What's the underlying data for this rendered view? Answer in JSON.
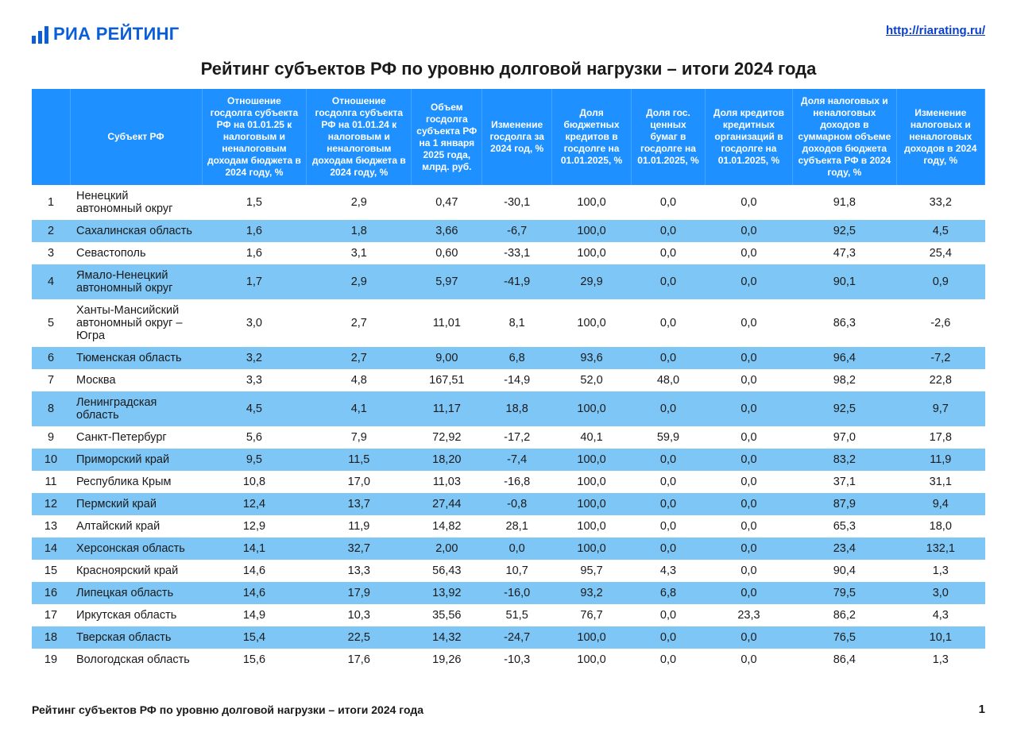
{
  "brand": {
    "ria": "РИА",
    "rating": "РЕЙТИНГ",
    "color": "#0b5ed7"
  },
  "url": "http://riarating.ru/",
  "title": "Рейтинг субъектов РФ по уровню долговой нагрузки – итоги 2024 года",
  "footer_text": "Рейтинг субъектов РФ по уровню долговой нагрузки – итоги 2024 года",
  "page_number": "1",
  "table": {
    "header_bg": "#1e90ff",
    "row_alt_bg": "#7ec6f5",
    "columns": [
      "",
      "Субъект РФ",
      "Отношение госдолга субъекта РФ на 01.01.25 к налоговым и неналоговым доходам бюджета в 2024 году, %",
      "Отношение госдолга субъекта РФ на 01.01.24 к налоговым и неналоговым доходам бюджета в 2024 году, %",
      "Объем госдолга субъекта РФ на 1 января 2025 года, млрд. руб.",
      "Изменение госдолга за 2024 год, %",
      "Доля бюджетных кредитов в госдолге на 01.01.2025, %",
      "Доля гос. ценных бумаг в госдолге на 01.01.2025, %",
      "Доля кредитов кредитных организаций в госдолге на 01.01.2025, %",
      "Доля налоговых и неналоговых доходов в суммарном объеме доходов бюджета субъекта РФ в 2024 году, %",
      "Изменение налоговых и неналоговых доходов в 2024 году, %"
    ],
    "rows": [
      [
        "1",
        "Ненецкий автономный округ",
        "1,5",
        "2,9",
        "0,47",
        "-30,1",
        "100,0",
        "0,0",
        "0,0",
        "91,8",
        "33,2"
      ],
      [
        "2",
        "Сахалинская область",
        "1,6",
        "1,8",
        "3,66",
        "-6,7",
        "100,0",
        "0,0",
        "0,0",
        "92,5",
        "4,5"
      ],
      [
        "3",
        "Севастополь",
        "1,6",
        "3,1",
        "0,60",
        "-33,1",
        "100,0",
        "0,0",
        "0,0",
        "47,3",
        "25,4"
      ],
      [
        "4",
        "Ямало-Ненецкий автономный округ",
        "1,7",
        "2,9",
        "5,97",
        "-41,9",
        "29,9",
        "0,0",
        "0,0",
        "90,1",
        "0,9"
      ],
      [
        "5",
        "Ханты-Мансийский автономный округ – Югра",
        "3,0",
        "2,7",
        "11,01",
        "8,1",
        "100,0",
        "0,0",
        "0,0",
        "86,3",
        "-2,6"
      ],
      [
        "6",
        "Тюменская область",
        "3,2",
        "2,7",
        "9,00",
        "6,8",
        "93,6",
        "0,0",
        "0,0",
        "96,4",
        "-7,2"
      ],
      [
        "7",
        "Москва",
        "3,3",
        "4,8",
        "167,51",
        "-14,9",
        "52,0",
        "48,0",
        "0,0",
        "98,2",
        "22,8"
      ],
      [
        "8",
        "Ленинградская область",
        "4,5",
        "4,1",
        "11,17",
        "18,8",
        "100,0",
        "0,0",
        "0,0",
        "92,5",
        "9,7"
      ],
      [
        "9",
        "Санкт-Петербург",
        "5,6",
        "7,9",
        "72,92",
        "-17,2",
        "40,1",
        "59,9",
        "0,0",
        "97,0",
        "17,8"
      ],
      [
        "10",
        "Приморский край",
        "9,5",
        "11,5",
        "18,20",
        "-7,4",
        "100,0",
        "0,0",
        "0,0",
        "83,2",
        "11,9"
      ],
      [
        "11",
        "Республика Крым",
        "10,8",
        "17,0",
        "11,03",
        "-16,8",
        "100,0",
        "0,0",
        "0,0",
        "37,1",
        "31,1"
      ],
      [
        "12",
        "Пермский край",
        "12,4",
        "13,7",
        "27,44",
        "-0,8",
        "100,0",
        "0,0",
        "0,0",
        "87,9",
        "9,4"
      ],
      [
        "13",
        "Алтайский край",
        "12,9",
        "11,9",
        "14,82",
        "28,1",
        "100,0",
        "0,0",
        "0,0",
        "65,3",
        "18,0"
      ],
      [
        "14",
        "Херсонская область",
        "14,1",
        "32,7",
        "2,00",
        "0,0",
        "100,0",
        "0,0",
        "0,0",
        "23,4",
        "132,1"
      ],
      [
        "15",
        "Красноярский край",
        "14,6",
        "13,3",
        "56,43",
        "10,7",
        "95,7",
        "4,3",
        "0,0",
        "90,4",
        "1,3"
      ],
      [
        "16",
        "Липецкая область",
        "14,6",
        "17,9",
        "13,92",
        "-16,0",
        "93,2",
        "6,8",
        "0,0",
        "79,5",
        "3,0"
      ],
      [
        "17",
        "Иркутская область",
        "14,9",
        "10,3",
        "35,56",
        "51,5",
        "76,7",
        "0,0",
        "23,3",
        "86,2",
        "4,3"
      ],
      [
        "18",
        "Тверская область",
        "15,4",
        "22,5",
        "14,32",
        "-24,7",
        "100,0",
        "0,0",
        "0,0",
        "76,5",
        "10,1"
      ],
      [
        "19",
        "Вологодская область",
        "15,6",
        "17,6",
        "19,26",
        "-10,3",
        "100,0",
        "0,0",
        "0,0",
        "86,4",
        "1,3"
      ]
    ]
  }
}
